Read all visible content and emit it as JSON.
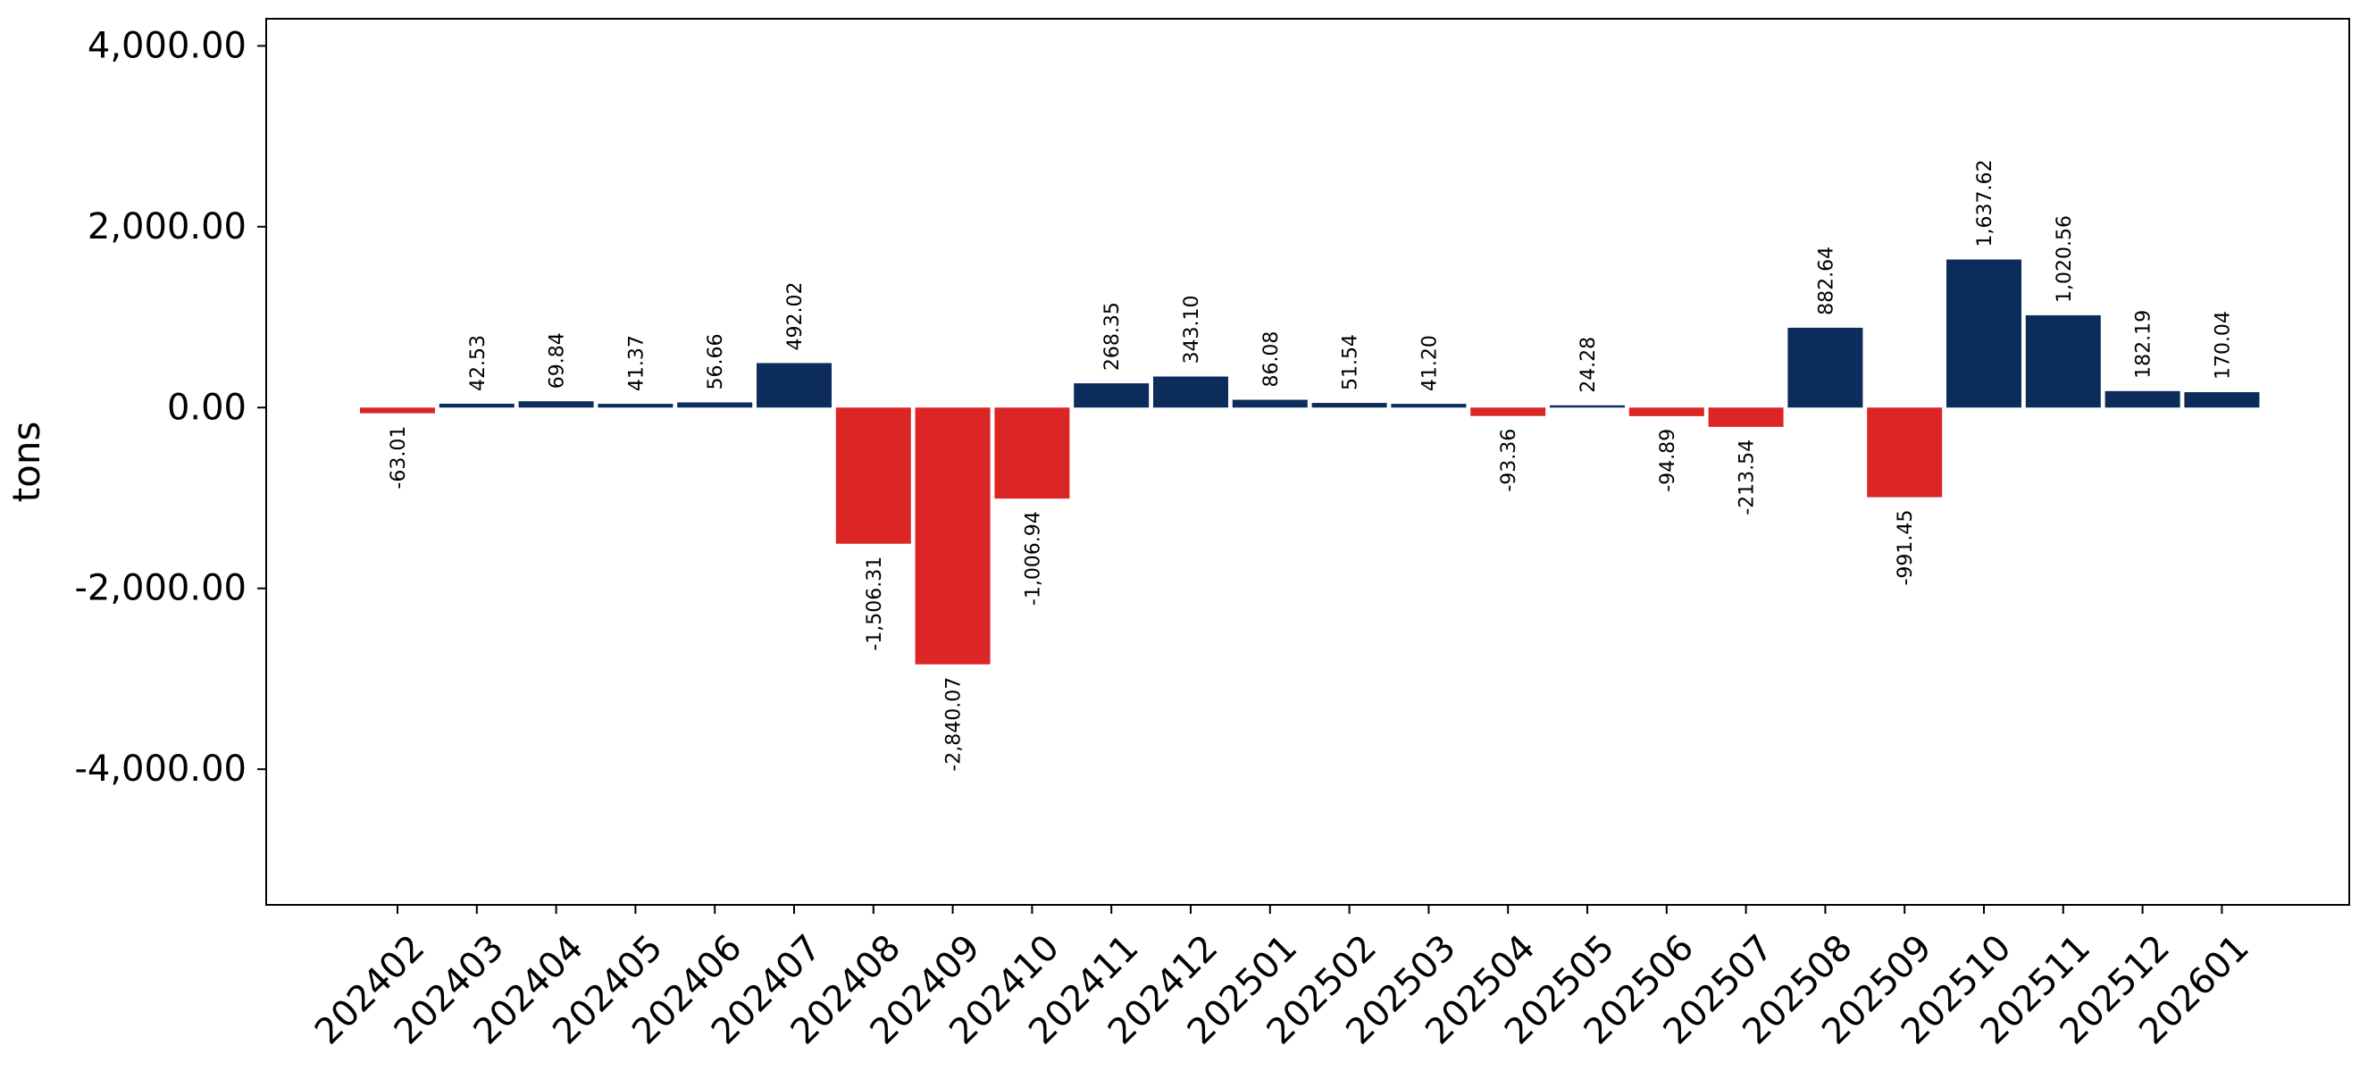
{
  "chart_data": {
    "type": "bar",
    "ylabel": "tons",
    "xlabel": "",
    "ylim": [
      -5500,
      4300
    ],
    "yticks": [
      -4000,
      -2000,
      0,
      2000,
      4000
    ],
    "ytick_labels": [
      "-4,000.00",
      "-2,000.00",
      "0.00",
      "2,000.00",
      "4,000.00"
    ],
    "categories": [
      "202402",
      "202403",
      "202404",
      "202405",
      "202406",
      "202407",
      "202408",
      "202409",
      "202410",
      "202411",
      "202412",
      "202501",
      "202502",
      "202503",
      "202504",
      "202505",
      "202506",
      "202507",
      "202508",
      "202509",
      "202510",
      "202511",
      "202512",
      "202601"
    ],
    "values": [
      -63.01,
      42.53,
      69.84,
      41.37,
      56.66,
      492.02,
      -1506.31,
      -2840.07,
      -1006.94,
      268.35,
      343.1,
      86.08,
      51.54,
      41.2,
      -93.36,
      24.28,
      -94.89,
      -213.54,
      882.64,
      -991.45,
      1637.62,
      1020.56,
      182.19,
      170.04
    ],
    "value_labels": [
      "-63.01",
      "42.53",
      "69.84",
      "41.37",
      "56.66",
      "492.02",
      "-1,506.31",
      "-2,840.07",
      "-1,006.94",
      "268.35",
      "343.10",
      "86.08",
      "51.54",
      "41.20",
      "-93.36",
      "24.28",
      "-94.89",
      "-213.54",
      "882.64",
      "-991.45",
      "1,637.62",
      "1,020.56",
      "182.19",
      "170.04"
    ],
    "colors": {
      "positive": "#0c2c5c",
      "negative": "#dc2626"
    },
    "grid": false,
    "legend": "none"
  }
}
